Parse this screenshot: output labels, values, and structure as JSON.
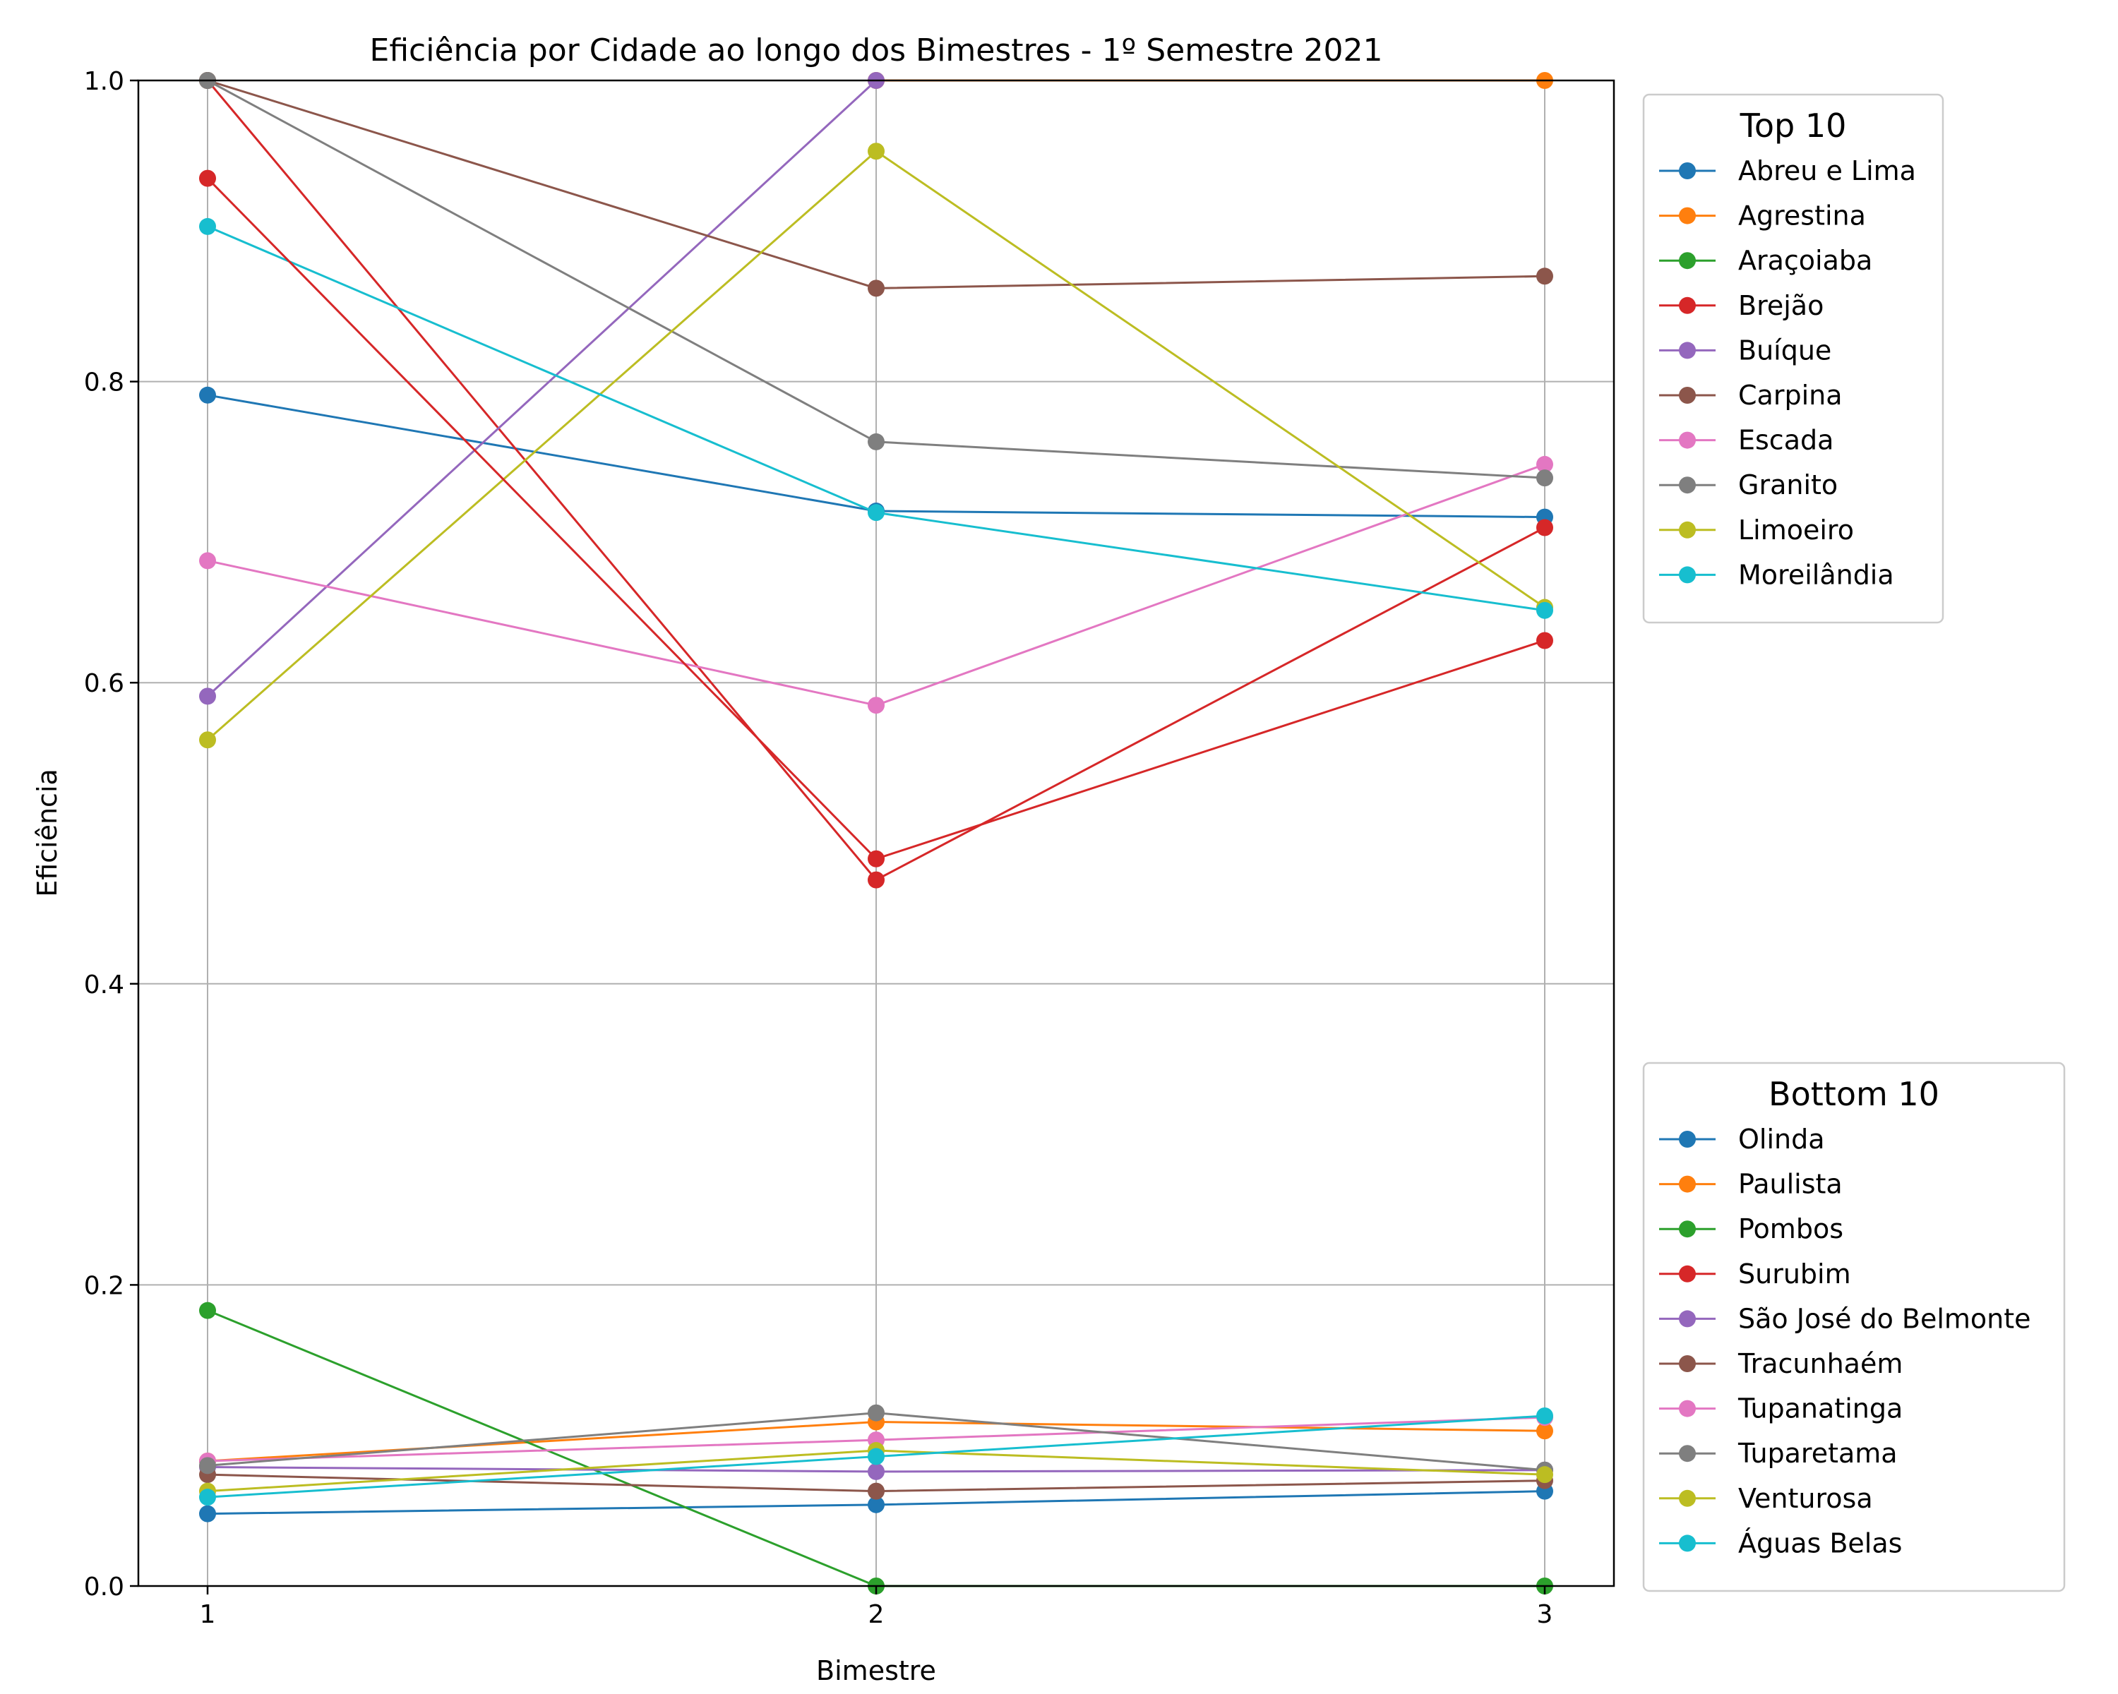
{
  "chart_data": {
    "type": "line",
    "title": "Eficiência por Cidade ao longo dos Bimestres - 1º Semestre 2021",
    "xlabel": "Bimestre",
    "ylabel": "Eficiência",
    "x": [
      1,
      2,
      3
    ],
    "xticks": [
      "1",
      "2",
      "3"
    ],
    "ylim": [
      0.0,
      1.0
    ],
    "yticks": [
      "0.0",
      "0.2",
      "0.4",
      "0.6",
      "0.8",
      "1.0"
    ],
    "grid": true,
    "legends": [
      {
        "title": "Top 10",
        "placement": "outside-right-top",
        "series": [
          {
            "name": "Abreu e Lima",
            "color": "#1f77b4",
            "values": [
              0.791,
              0.714,
              0.71
            ]
          },
          {
            "name": "Agrestina",
            "color": "#ff7f0e",
            "values": [
              null,
              1.0,
              1.0
            ]
          },
          {
            "name": "Araçoiaba",
            "color": "#2ca02c",
            "values": [
              1.0,
              null,
              null
            ]
          },
          {
            "name": "Brejão",
            "color": "#d62728",
            "values": [
              1.0,
              0.469,
              0.703
            ]
          },
          {
            "name": "Buíque",
            "color": "#9467bd",
            "values": [
              0.591,
              1.0,
              null
            ]
          },
          {
            "name": "Carpina",
            "color": "#8c564b",
            "values": [
              1.0,
              0.862,
              0.87
            ]
          },
          {
            "name": "Escada",
            "color": "#e377c2",
            "values": [
              0.681,
              0.585,
              0.745
            ]
          },
          {
            "name": "Granito",
            "color": "#7f7f7f",
            "values": [
              1.0,
              0.76,
              0.736
            ]
          },
          {
            "name": "Limoeiro",
            "color": "#bcbd22",
            "values": [
              0.562,
              0.953,
              0.65
            ]
          },
          {
            "name": "Moreilândia",
            "color": "#17becf",
            "values": [
              0.903,
              0.713,
              0.648
            ]
          }
        ]
      },
      {
        "title": "Bottom 10",
        "placement": "outside-right-bottom",
        "series": [
          {
            "name": "Olinda",
            "color": "#1f77b4",
            "values": [
              0.048,
              0.054,
              0.063
            ]
          },
          {
            "name": "Paulista",
            "color": "#ff7f0e",
            "values": [
              0.083,
              0.109,
              0.103
            ]
          },
          {
            "name": "Pombos",
            "color": "#2ca02c",
            "values": [
              0.183,
              0.0,
              0.0
            ]
          },
          {
            "name": "Surubim",
            "color": "#d62728",
            "values": [
              0.935,
              0.483,
              0.628
            ]
          },
          {
            "name": "São José do Belmonte",
            "color": "#9467bd",
            "values": [
              0.079,
              0.076,
              0.077
            ]
          },
          {
            "name": "Tracunhaém",
            "color": "#8c564b",
            "values": [
              0.074,
              0.063,
              0.07
            ]
          },
          {
            "name": "Tupanatinga",
            "color": "#e377c2",
            "values": [
              0.083,
              0.097,
              0.112
            ]
          },
          {
            "name": "Tuparetama",
            "color": "#7f7f7f",
            "values": [
              0.08,
              0.115,
              0.077
            ]
          },
          {
            "name": "Venturosa",
            "color": "#bcbd22",
            "values": [
              0.063,
              0.09,
              0.074
            ]
          },
          {
            "name": "Águas Belas",
            "color": "#17becf",
            "values": [
              0.059,
              0.086,
              0.113
            ]
          }
        ]
      }
    ]
  }
}
